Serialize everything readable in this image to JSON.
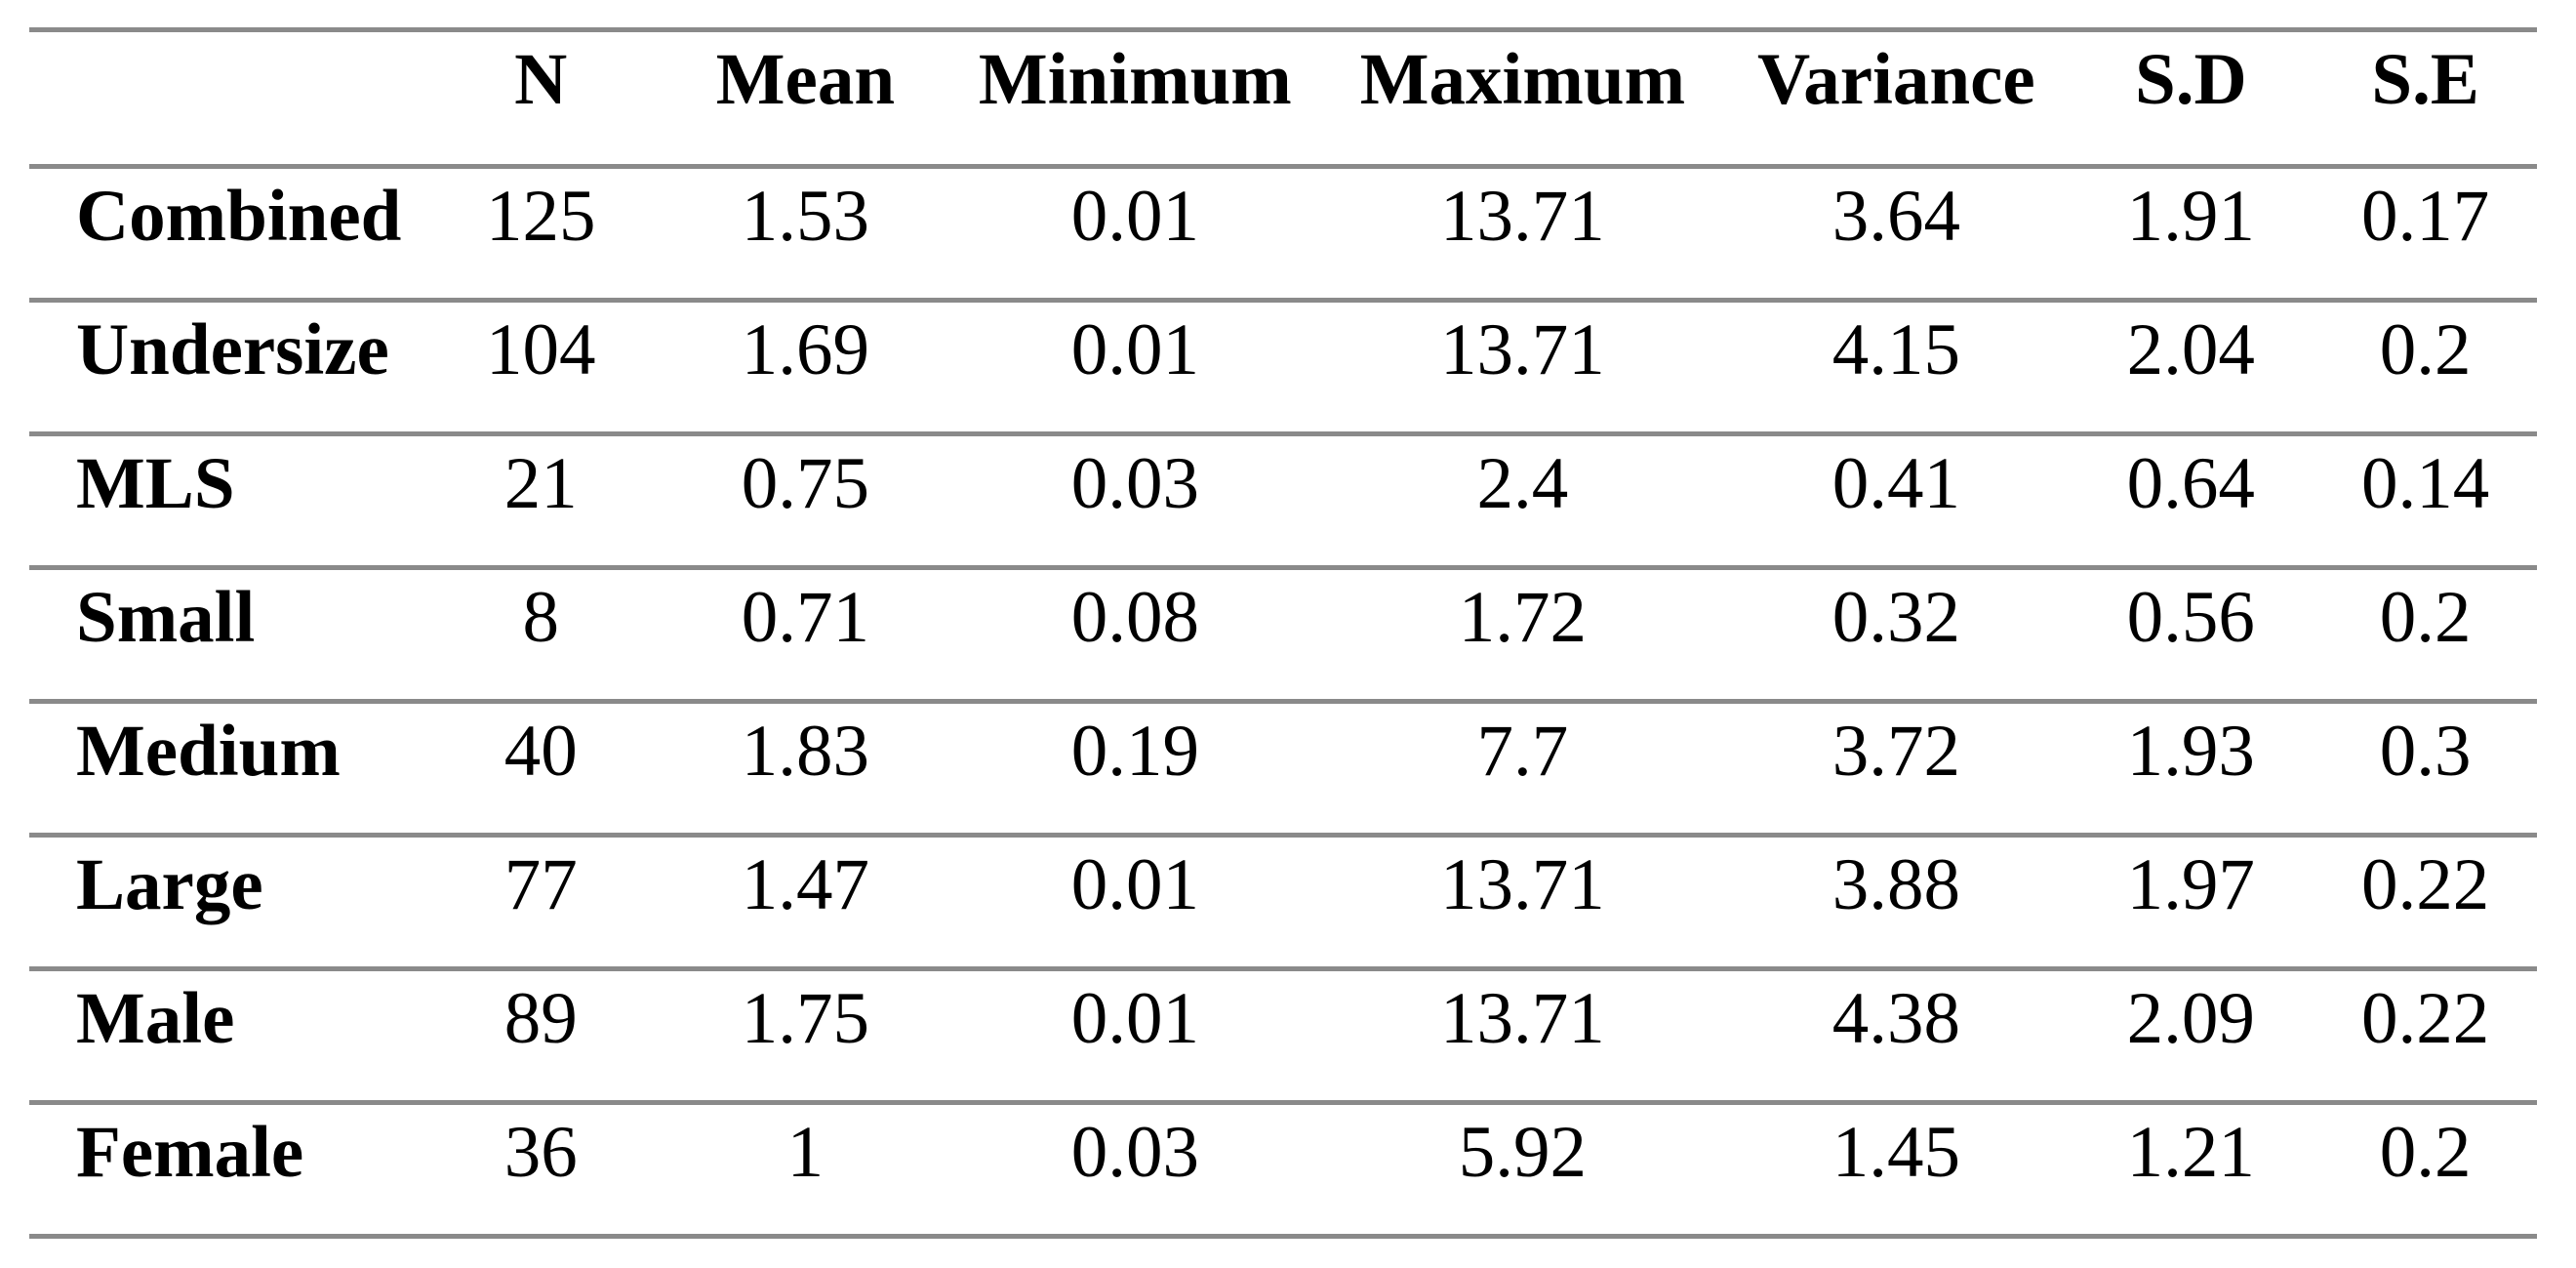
{
  "table": {
    "columns": {
      "label": "",
      "n": "N",
      "mean": "Mean",
      "minimum": "Minimum",
      "maximum": "Maximum",
      "variance": "Variance",
      "sd": "S.D",
      "se": "S.E"
    },
    "rows": [
      {
        "label": "Combined",
        "values": [
          "125",
          "1.53",
          "0.01",
          "13.71",
          "3.64",
          "1.91",
          "0.17"
        ]
      },
      {
        "label": "Undersize",
        "values": [
          "104",
          "1.69",
          "0.01",
          "13.71",
          "4.15",
          "2.04",
          "0.2"
        ]
      },
      {
        "label": "MLS",
        "values": [
          "21",
          "0.75",
          "0.03",
          "2.4",
          "0.41",
          "0.64",
          "0.14"
        ]
      },
      {
        "label": "Small",
        "values": [
          "8",
          "0.71",
          "0.08",
          "1.72",
          "0.32",
          "0.56",
          "0.2"
        ]
      },
      {
        "label": "Medium",
        "values": [
          "40",
          "1.83",
          "0.19",
          "7.7",
          "3.72",
          "1.93",
          "0.3"
        ]
      },
      {
        "label": "Large",
        "values": [
          "77",
          "1.47",
          "0.01",
          "13.71",
          "3.88",
          "1.97",
          "0.22"
        ]
      },
      {
        "label": "Male",
        "values": [
          "89",
          "1.75",
          "0.01",
          "13.71",
          "4.38",
          "2.09",
          "0.22"
        ]
      },
      {
        "label": "Female",
        "values": [
          "36",
          "1",
          "0.03",
          "5.92",
          "1.45",
          "1.21",
          "0.2"
        ]
      }
    ],
    "style": {
      "rule_color": "#8a8a8a",
      "text_color": "#000000",
      "background": "#ffffff"
    }
  }
}
